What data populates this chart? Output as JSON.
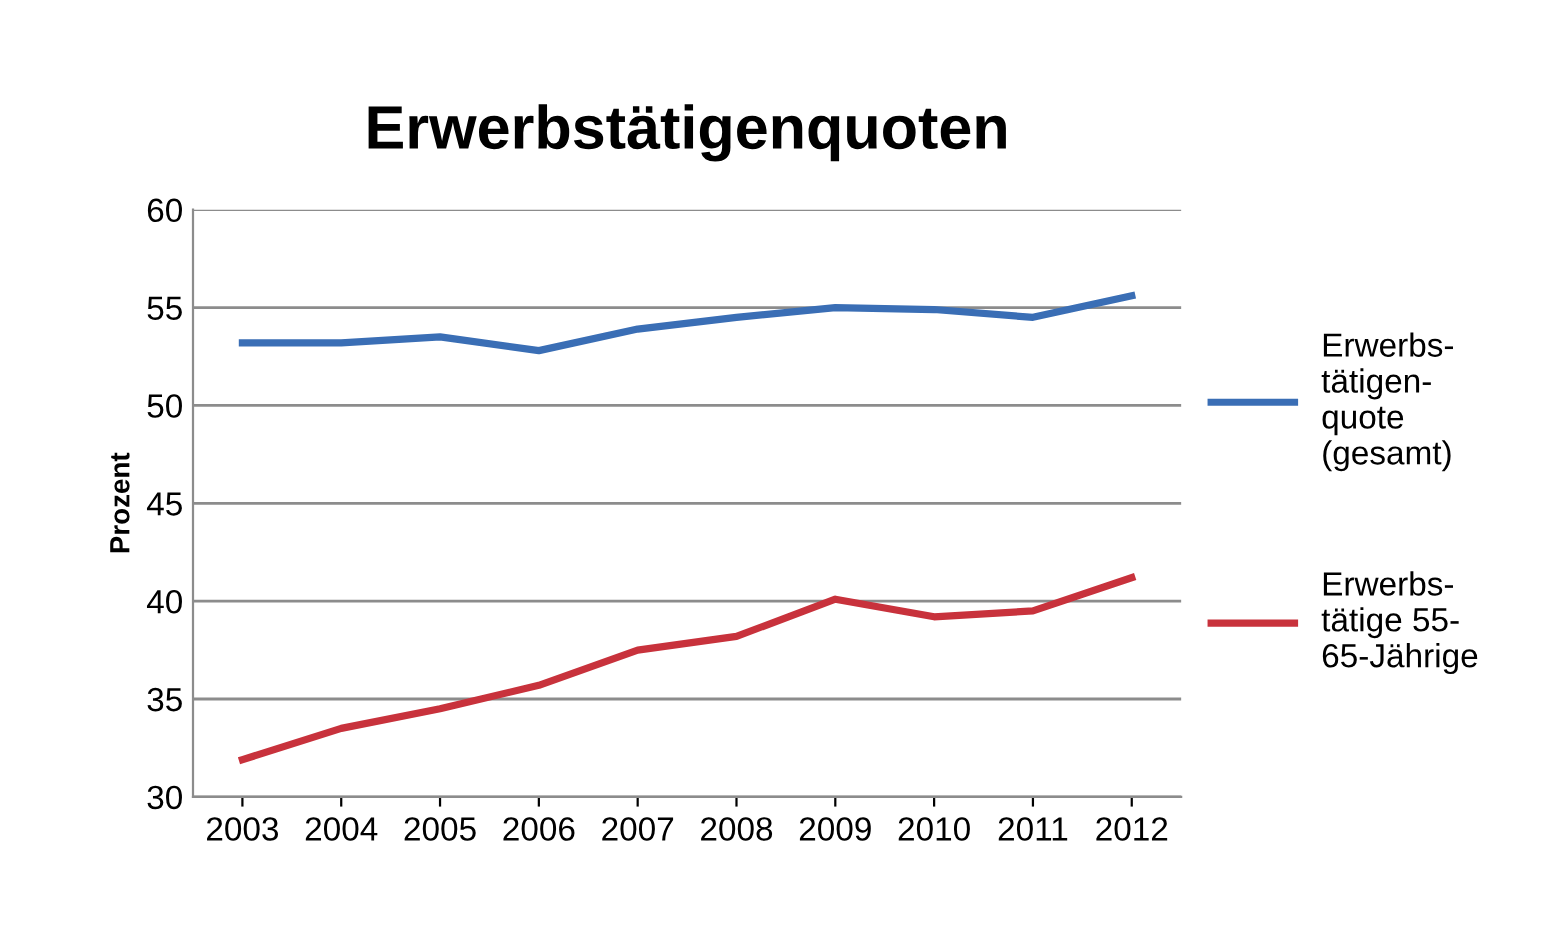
{
  "chart_data": {
    "type": "line",
    "title": "Erwerbstätigenquoten",
    "ylabel": "Prozent",
    "categories": [
      "2003",
      "2004",
      "2005",
      "2006",
      "2007",
      "2008",
      "2009",
      "2010",
      "2011",
      "2012"
    ],
    "series": [
      {
        "name": "Erwerbs-\ntätigen-\nquote\n(gesamt)",
        "color": "#3a6eb5",
        "values": [
          53.2,
          53.2,
          53.5,
          52.8,
          53.9,
          54.5,
          55.0,
          54.9,
          54.5,
          55.6
        ]
      },
      {
        "name": "Erwerbs-\ntätige 55-\n65-Jährige",
        "color": "#c8323c",
        "values": [
          31.9,
          33.5,
          34.5,
          35.7,
          37.5,
          38.2,
          40.1,
          39.2,
          39.5,
          41.2
        ]
      }
    ],
    "ylim": [
      30,
      60
    ],
    "yticks": [
      30,
      35,
      40,
      45,
      50,
      55,
      60
    ],
    "grid": "y",
    "legend": "right",
    "marker": "none",
    "line_style": "solid"
  }
}
